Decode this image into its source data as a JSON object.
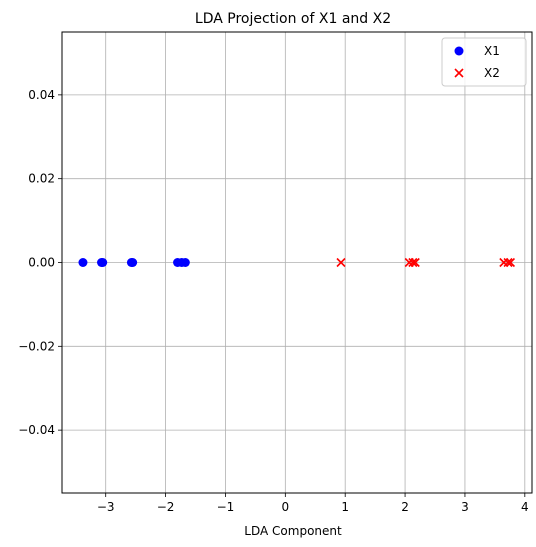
{
  "chart_data": {
    "type": "scatter",
    "title": "LDA Projection of X1 and X2",
    "xlabel": "LDA Component",
    "ylabel": "",
    "xlim": [
      -3.73,
      4.12
    ],
    "ylim": [
      -0.055,
      0.055
    ],
    "xticks": [
      -3,
      -2,
      -1,
      0,
      1,
      2,
      3,
      4
    ],
    "xtick_labels": [
      "−3",
      "−2",
      "−1",
      "0",
      "1",
      "2",
      "3",
      "4"
    ],
    "yticks": [
      -0.04,
      -0.02,
      0.0,
      0.02,
      0.04
    ],
    "ytick_labels": [
      "−0.04",
      "−0.02",
      "0.00",
      "0.02",
      "0.04"
    ],
    "grid": true,
    "legend_position": "top-right",
    "series": [
      {
        "name": "X1",
        "marker": "circle",
        "color": "#0000ff",
        "x": [
          -3.38,
          -3.07,
          -3.05,
          -2.57,
          -2.55,
          -1.8,
          -1.73,
          -1.67
        ],
        "y": [
          0,
          0,
          0,
          0,
          0,
          0,
          0,
          0
        ]
      },
      {
        "name": "X2",
        "marker": "x",
        "color": "#ff0000",
        "x": [
          0.93,
          2.07,
          2.13,
          2.17,
          3.65,
          3.72,
          3.76
        ],
        "y": [
          0,
          0,
          0,
          0,
          0,
          0,
          0
        ]
      }
    ]
  }
}
